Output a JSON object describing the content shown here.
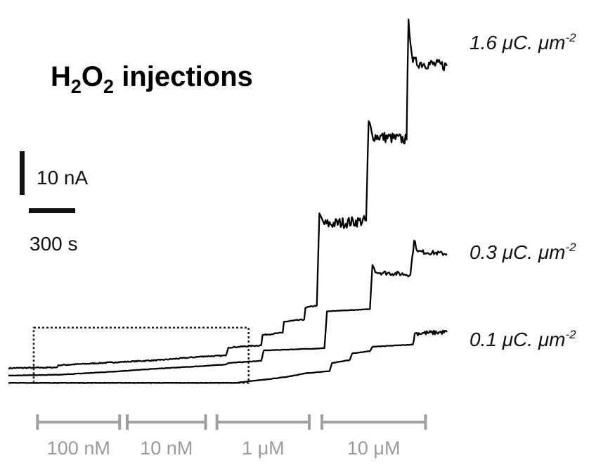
{
  "title": {
    "main": "H",
    "sub1": "2",
    "mid": "O",
    "sub2": "2",
    "rest": " injections"
  },
  "scale_bars": {
    "current_label": "10 nA",
    "time_label": "300 s"
  },
  "colors": {
    "trace": "#000000",
    "bracket": "#a0a0a0",
    "bracket_text": "#9a9a9a"
  },
  "chart_data": {
    "type": "line",
    "title": "H2O2 injections",
    "xlabel": "",
    "ylabel": "",
    "axes_visible": false,
    "grid": false,
    "legend": "none",
    "scale_bars": {
      "y": {
        "value": 10,
        "unit": "nA"
      },
      "x": {
        "value": 300,
        "unit": "s"
      }
    },
    "xlim": [
      0,
      3470
    ],
    "ylim": [
      -1.0,
      51.0
    ],
    "injection_groups": [
      {
        "label": "100 nM",
        "t_start": 230,
        "t_end": 880
      },
      {
        "label": "10 nM",
        "t_start": 940,
        "t_end": 1560
      },
      {
        "label": "1 μM",
        "t_start": 1650,
        "t_end": 2380
      },
      {
        "label": "10 μM",
        "t_start": 2480,
        "t_end": 3300
      }
    ],
    "zoom_box": {
      "t_start": 200,
      "t_end": 1900,
      "y_min": 0.5,
      "y_max": 8.0
    },
    "series": [
      {
        "name": "1.6 μC. μm⁻²",
        "label_main": "1.6 ",
        "label_unit": "μC. μm",
        "label_sup": "-2",
        "noise": 0.25,
        "noise_from": 2500,
        "points": [
          [
            0,
            2.5
          ],
          [
            380,
            2.6
          ],
          [
            400,
            2.9
          ],
          [
            850,
            3.3
          ],
          [
            1200,
            3.6
          ],
          [
            1550,
            4.1
          ],
          [
            1720,
            4.2
          ],
          [
            1740,
            5.3
          ],
          [
            2000,
            5.6
          ],
          [
            2010,
            7.0
          ],
          [
            2170,
            7.3
          ],
          [
            2180,
            8.8
          ],
          [
            2340,
            9.1
          ],
          [
            2350,
            10.7
          ],
          [
            2440,
            11.0
          ],
          [
            2460,
            23.5
          ],
          [
            2500,
            22.0
          ],
          [
            2830,
            22.5
          ],
          [
            2850,
            36.0
          ],
          [
            2880,
            34.0
          ],
          [
            3150,
            33.5
          ],
          [
            3165,
            49.8
          ],
          [
            3200,
            44.0
          ],
          [
            3470,
            43.5
          ]
        ]
      },
      {
        "name": "0.3 μC. μm⁻²",
        "label_main": "0.3 ",
        "label_unit": "μC. μm",
        "label_sup": "-2",
        "noise": 0.1,
        "noise_from": 2900,
        "points": [
          [
            0,
            1.5
          ],
          [
            400,
            1.6
          ],
          [
            800,
            2.0
          ],
          [
            1150,
            2.4
          ],
          [
            1550,
            2.8
          ],
          [
            1720,
            3.0
          ],
          [
            1740,
            3.2
          ],
          [
            2000,
            3.5
          ],
          [
            2020,
            4.9
          ],
          [
            2500,
            5.2
          ],
          [
            2520,
            10.2
          ],
          [
            2860,
            10.5
          ],
          [
            2880,
            16.5
          ],
          [
            2910,
            15.5
          ],
          [
            3180,
            15.2
          ],
          [
            3210,
            19.8
          ],
          [
            3240,
            18.3
          ],
          [
            3470,
            18.0
          ]
        ]
      },
      {
        "name": "0.1 μC. μm⁻²",
        "label_main": "0.1 ",
        "label_unit": "μC. μm",
        "label_sup": "-2",
        "noise": 0.1,
        "noise_from": 3200,
        "points": [
          [
            0,
            0.5
          ],
          [
            700,
            0.5
          ],
          [
            1800,
            0.5
          ],
          [
            2000,
            0.9
          ],
          [
            2200,
            1.3
          ],
          [
            2350,
            1.8
          ],
          [
            2540,
            2.1
          ],
          [
            2560,
            3.2
          ],
          [
            2700,
            3.6
          ],
          [
            2720,
            4.5
          ],
          [
            2860,
            4.8
          ],
          [
            2880,
            5.4
          ],
          [
            3200,
            5.7
          ],
          [
            3215,
            7.2
          ],
          [
            3470,
            7.4
          ]
        ]
      }
    ]
  }
}
